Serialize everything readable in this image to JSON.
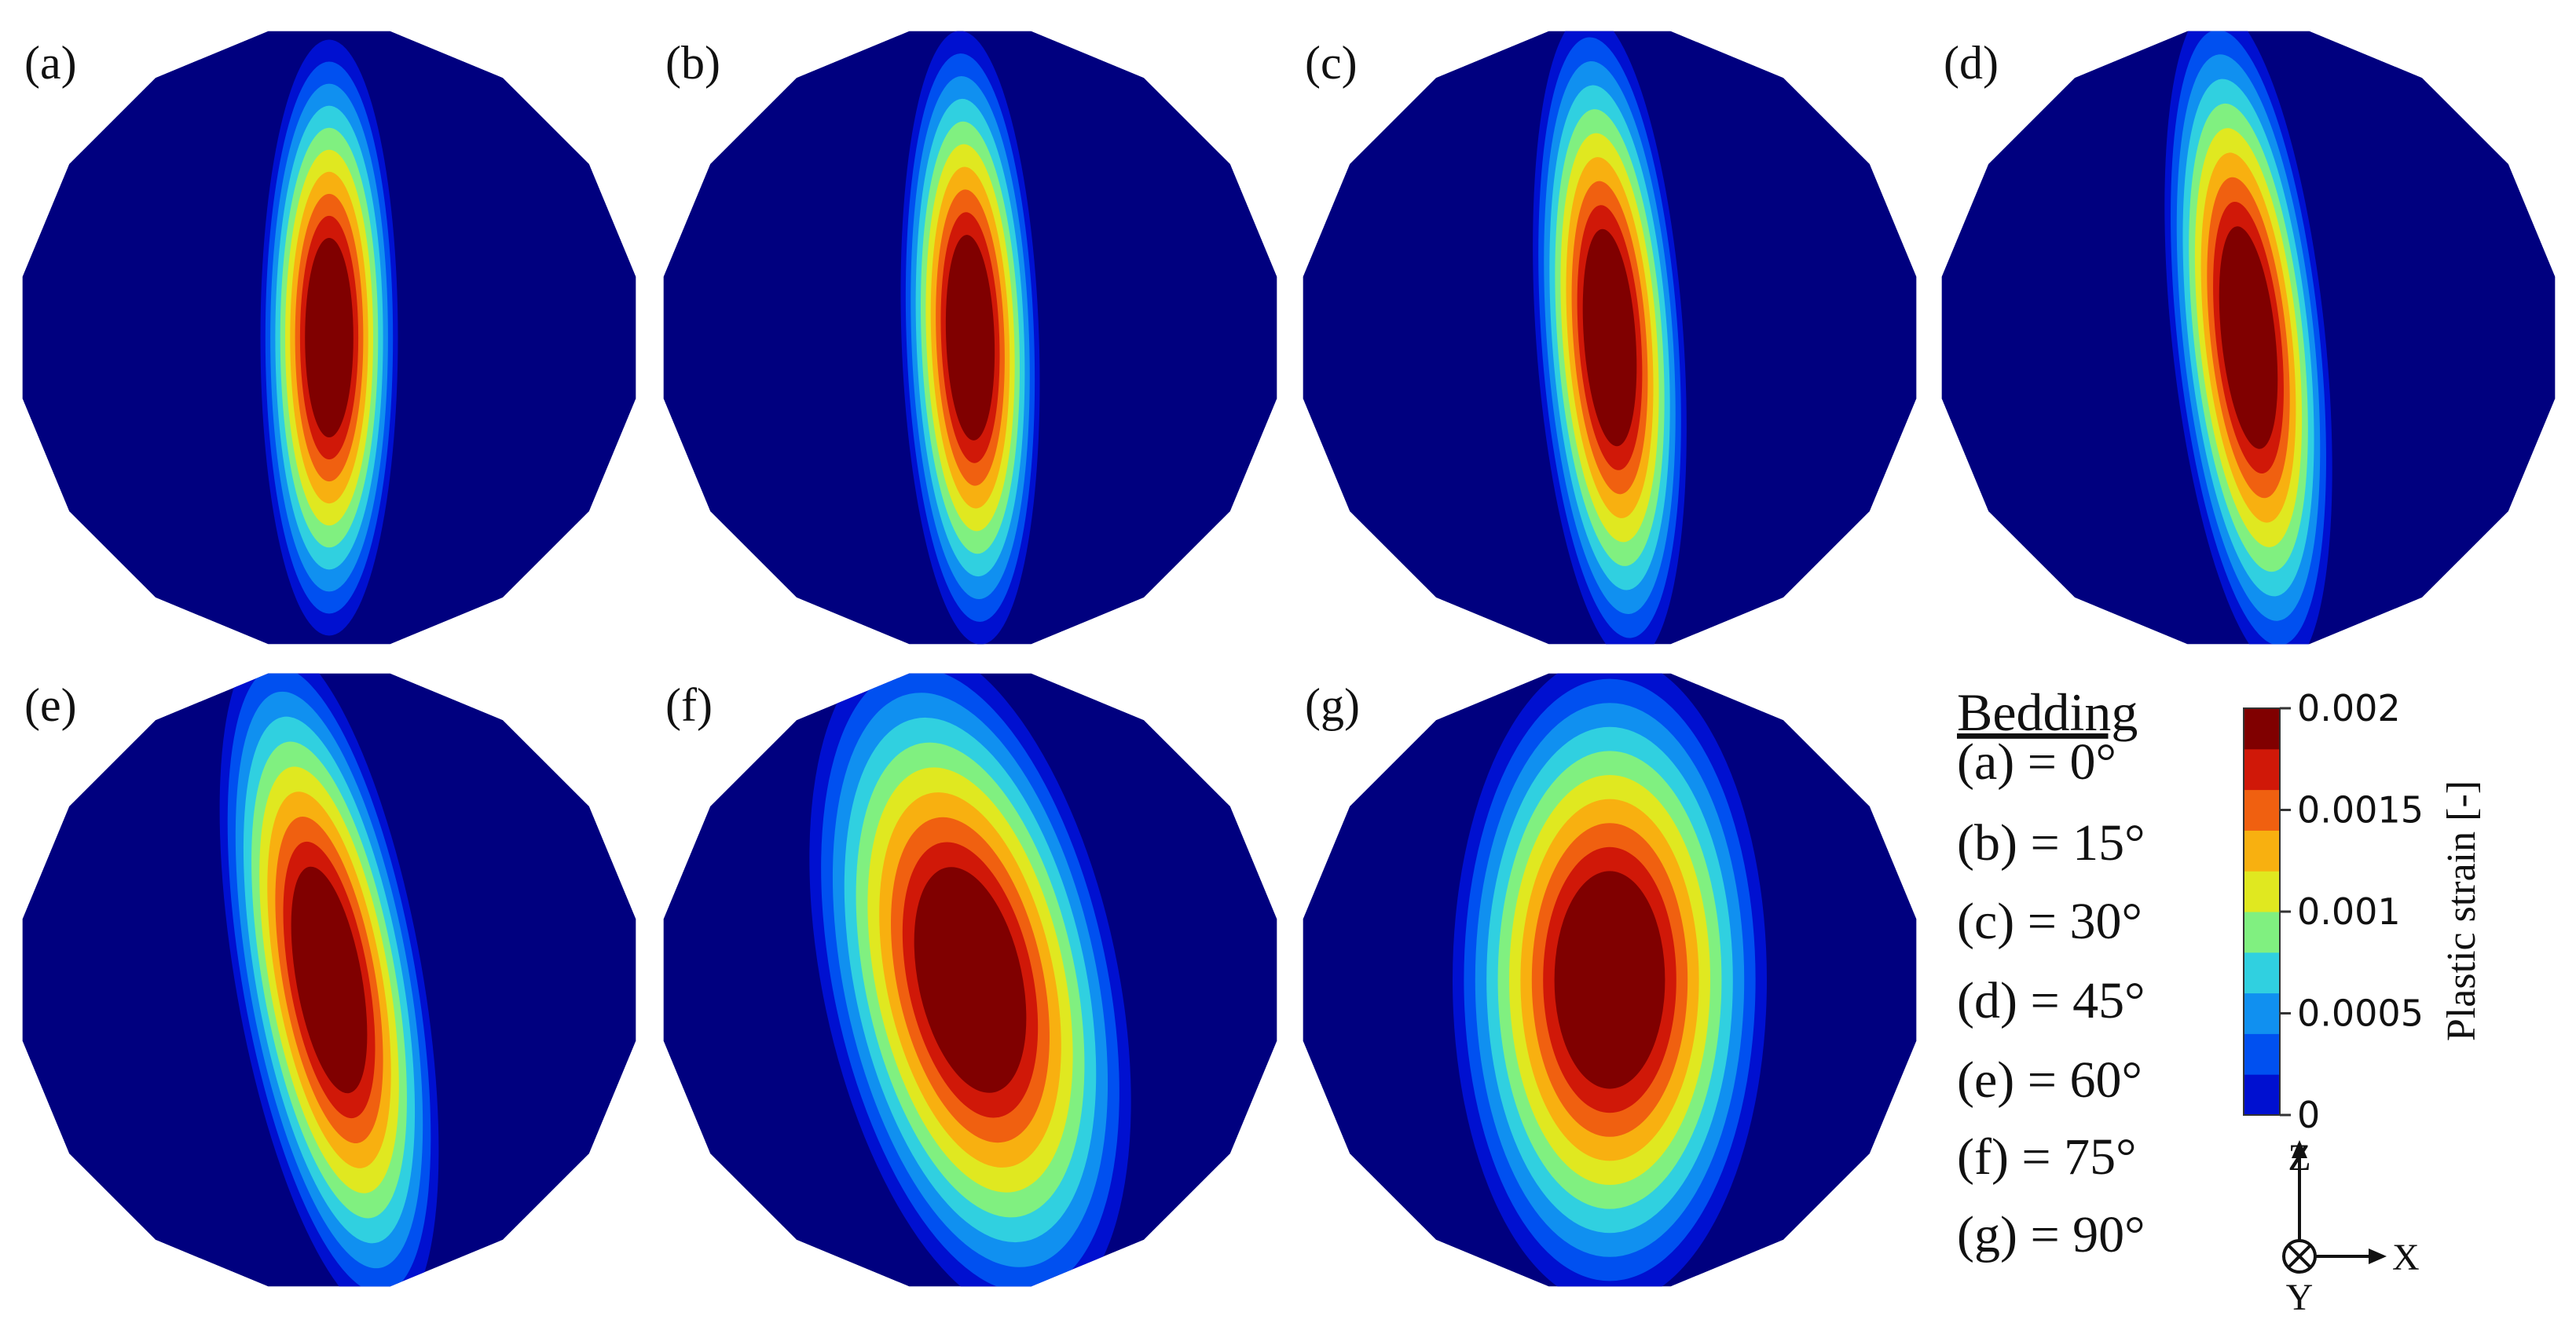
{
  "panels": [
    "(a)",
    "(b)",
    "(c)",
    "(d)",
    "(e)",
    "(f)",
    "(g)"
  ],
  "legend": {
    "title": "Bedding",
    "entries": [
      "(a) = 0°",
      "(b) = 15°",
      "(c) = 30°",
      "(d) = 45°",
      "(e) = 60°",
      "(f) = 75°",
      "(g) = 90°"
    ]
  },
  "colorbar": {
    "label": "Plastic strain [-]",
    "lim": [
      0,
      0.002
    ],
    "ticks": [
      0.002,
      0.0015,
      0.001,
      0.0005,
      0
    ]
  },
  "axes": {
    "z": "Z",
    "x": "X",
    "y": "Y"
  }
}
